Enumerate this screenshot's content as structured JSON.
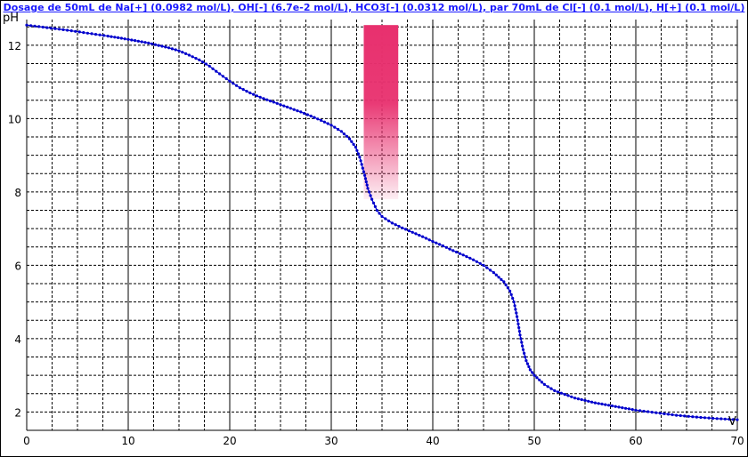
{
  "chart_data": {
    "type": "line",
    "title": "Dosage de 50mL de Na[+] (0.0982 mol/L), OH[-] (6.7e-2 mol/L), HCO3[-] (0.0312 mol/L),  par 70mL  de Cl[-] (0.1 mol/L), H[+] (0.1 mol/L)",
    "xlabel": "V",
    "ylabel": "pH",
    "xlim": [
      0,
      70
    ],
    "ylim": [
      1.5,
      12.7
    ],
    "x_ticks": [
      0,
      10,
      20,
      30,
      40,
      50,
      60,
      70
    ],
    "y_ticks": [
      2,
      4,
      6,
      8,
      10,
      12
    ],
    "grid": true,
    "colors": {
      "series": "#0000cc",
      "indicator": "#e8306e",
      "title": "#1a1aff"
    },
    "indicator_zone": {
      "x_range": [
        33.2,
        36.6
      ],
      "y_range": [
        7.8,
        12.55
      ]
    },
    "series": [
      {
        "points": [
          [
            0,
            12.55
          ],
          [
            2,
            12.48
          ],
          [
            4,
            12.41
          ],
          [
            6,
            12.33
          ],
          [
            8,
            12.25
          ],
          [
            10,
            12.16
          ],
          [
            12,
            12.06
          ],
          [
            14,
            11.93
          ],
          [
            15,
            11.85
          ],
          [
            16,
            11.73
          ],
          [
            17,
            11.6
          ],
          [
            18,
            11.43
          ],
          [
            19,
            11.22
          ],
          [
            20,
            11.02
          ],
          [
            21,
            10.84
          ],
          [
            22,
            10.7
          ],
          [
            23,
            10.58
          ],
          [
            24,
            10.48
          ],
          [
            25,
            10.38
          ],
          [
            26,
            10.28
          ],
          [
            27,
            10.18
          ],
          [
            28,
            10.07
          ],
          [
            29,
            9.95
          ],
          [
            30,
            9.82
          ],
          [
            31,
            9.65
          ],
          [
            31.8,
            9.45
          ],
          [
            32.4,
            9.22
          ],
          [
            32.8,
            8.95
          ],
          [
            33,
            8.75
          ],
          [
            33.3,
            8.45
          ],
          [
            33.6,
            8.1
          ],
          [
            34,
            7.8
          ],
          [
            34.5,
            7.5
          ],
          [
            35,
            7.33
          ],
          [
            36,
            7.15
          ],
          [
            37,
            7.02
          ],
          [
            38,
            6.9
          ],
          [
            39,
            6.78
          ],
          [
            40,
            6.65
          ],
          [
            41,
            6.53
          ],
          [
            42,
            6.4
          ],
          [
            43,
            6.28
          ],
          [
            44,
            6.15
          ],
          [
            45,
            6.0
          ],
          [
            46,
            5.8
          ],
          [
            47,
            5.55
          ],
          [
            47.6,
            5.3
          ],
          [
            48.0,
            5.0
          ],
          [
            48.3,
            4.6
          ],
          [
            48.6,
            4.1
          ],
          [
            48.9,
            3.7
          ],
          [
            49.2,
            3.4
          ],
          [
            49.6,
            3.15
          ],
          [
            50,
            3.0
          ],
          [
            51,
            2.75
          ],
          [
            52,
            2.58
          ],
          [
            54,
            2.38
          ],
          [
            56,
            2.25
          ],
          [
            58,
            2.15
          ],
          [
            60,
            2.05
          ],
          [
            62,
            1.98
          ],
          [
            64,
            1.91
          ],
          [
            66,
            1.86
          ],
          [
            68,
            1.82
          ],
          [
            70,
            1.79
          ]
        ]
      }
    ]
  }
}
